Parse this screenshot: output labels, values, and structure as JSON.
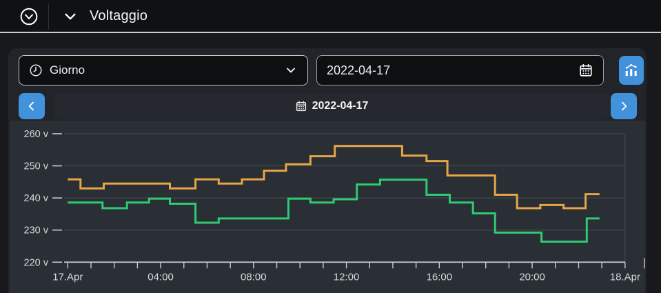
{
  "topbar": {
    "title": "Voltaggio",
    "logo_icon": "circled-chevron-down-icon",
    "collapse_icon": "chevron-down-icon"
  },
  "controls": {
    "period_select": {
      "value": "Giorno",
      "icon": "clock-icon",
      "chevron_icon": "chevron-down-icon"
    },
    "date_input": {
      "value": "2022-04-17",
      "icon": "calendar-icon"
    },
    "chart_button": {
      "icon": "combo-chart-icon"
    }
  },
  "nav": {
    "prev_icon": "chevron-left-icon",
    "next_icon": "chevron-right-icon",
    "date_display": {
      "value": "2022-04-17",
      "icon": "calendar-icon"
    }
  },
  "colors": {
    "accent_blue": "#4191DB",
    "series_orange": "#E6A546",
    "series_green": "#2ECB73",
    "chart_background": "#2A2E35",
    "gridline": "#4A4F56",
    "axis": "#C9CCD0"
  },
  "chart_data": {
    "type": "line",
    "step_mode": "after",
    "title": "",
    "xlabel": "",
    "ylabel": "v",
    "x_unit": "hours_of_2022-04-17",
    "x_range_hours": [
      0,
      24
    ],
    "minor_tick_interval_hours": 1,
    "grid": "horizontal",
    "legend_position": "none",
    "ylim": [
      220,
      260
    ],
    "yticks": [
      {
        "value": 260,
        "label": "260 v"
      },
      {
        "value": 250,
        "label": "250 v"
      },
      {
        "value": 240,
        "label": "240 v"
      },
      {
        "value": 230,
        "label": "230 v"
      },
      {
        "value": 220,
        "label": "220 v"
      }
    ],
    "xticks": [
      {
        "hour": 0,
        "label": "17.Apr"
      },
      {
        "hour": 4,
        "label": "04:00"
      },
      {
        "hour": 8,
        "label": "08:00"
      },
      {
        "hour": 12,
        "label": "12:00"
      },
      {
        "hour": 16,
        "label": "16:00"
      },
      {
        "hour": 20,
        "label": "20:00"
      },
      {
        "hour": 24,
        "label": "18.Apr"
      }
    ],
    "series": [
      {
        "name": "voltage-orange",
        "color": "#E6A546",
        "end_hour": 22.9,
        "points": [
          [
            0.0,
            245.8
          ],
          [
            0.55,
            243.0
          ],
          [
            1.55,
            244.5
          ],
          [
            4.4,
            243.0
          ],
          [
            5.5,
            245.8
          ],
          [
            6.5,
            244.5
          ],
          [
            7.5,
            245.8
          ],
          [
            8.45,
            248.5
          ],
          [
            9.4,
            250.5
          ],
          [
            10.45,
            253.0
          ],
          [
            11.5,
            256.2
          ],
          [
            14.4,
            253.2
          ],
          [
            15.45,
            251.5
          ],
          [
            16.35,
            247.0
          ],
          [
            18.4,
            241.0
          ],
          [
            19.35,
            236.8
          ],
          [
            20.35,
            237.8
          ],
          [
            21.35,
            236.8
          ],
          [
            22.3,
            241.2
          ]
        ]
      },
      {
        "name": "voltage-green",
        "color": "#2ECB73",
        "end_hour": 22.9,
        "points": [
          [
            0.0,
            238.6
          ],
          [
            1.5,
            236.8
          ],
          [
            2.55,
            238.6
          ],
          [
            3.5,
            239.8
          ],
          [
            4.4,
            238.2
          ],
          [
            5.5,
            232.3
          ],
          [
            6.5,
            233.6
          ],
          [
            9.5,
            239.8
          ],
          [
            10.45,
            238.6
          ],
          [
            11.45,
            239.6
          ],
          [
            12.45,
            244.2
          ],
          [
            13.45,
            245.7
          ],
          [
            15.45,
            241.0
          ],
          [
            16.45,
            238.6
          ],
          [
            17.45,
            235.2
          ],
          [
            18.4,
            229.2
          ],
          [
            20.4,
            226.4
          ],
          [
            22.35,
            233.6
          ]
        ]
      }
    ]
  }
}
